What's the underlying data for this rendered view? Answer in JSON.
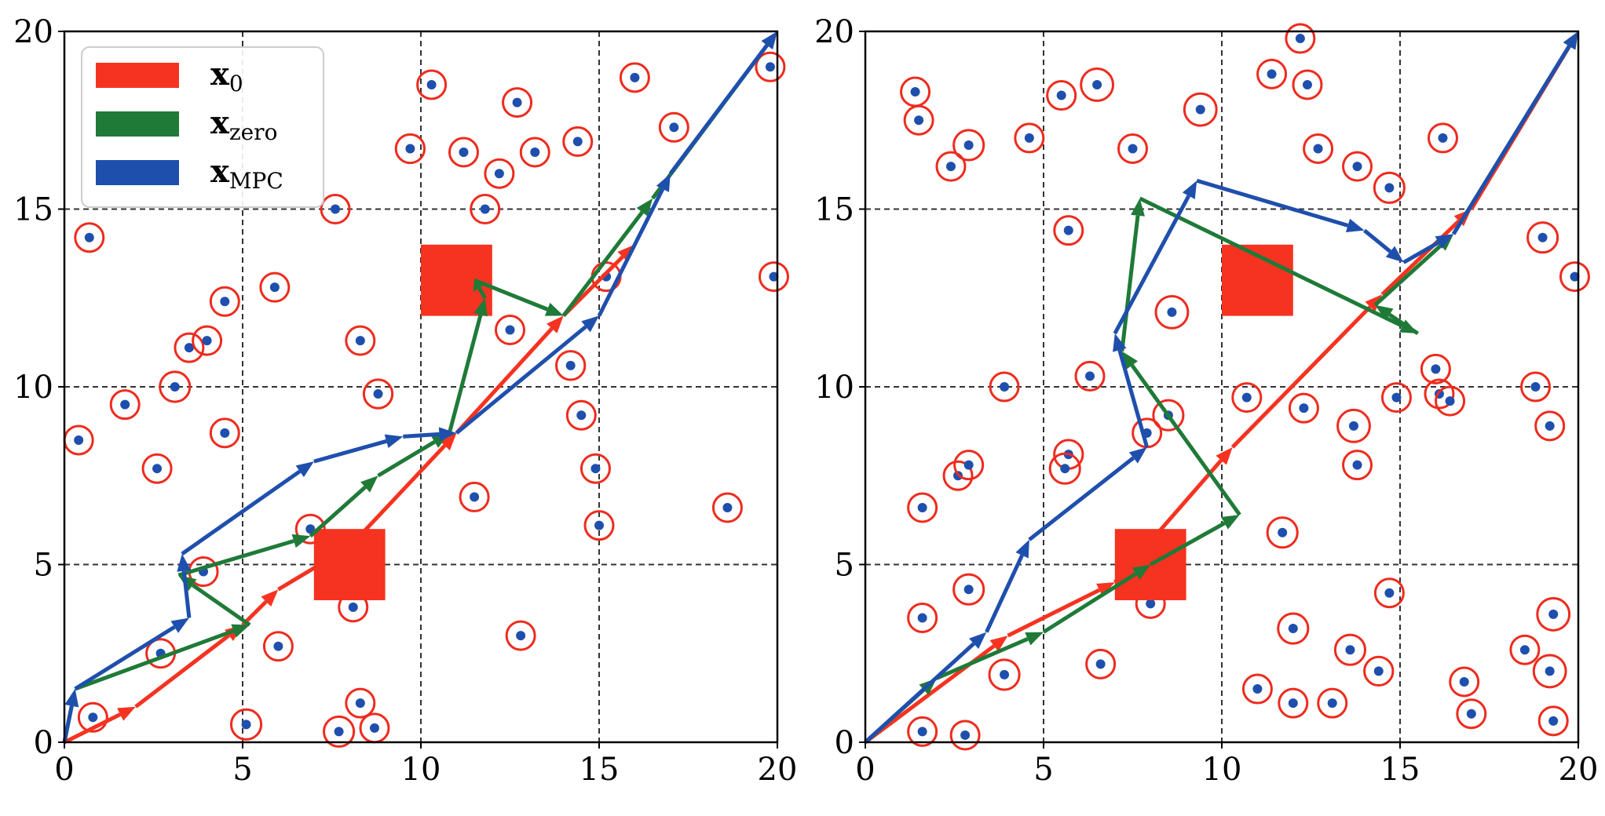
{
  "colors": {
    "x0": "#f53320",
    "xzero": "#1f7a38",
    "xmpc": "#1f4fad",
    "obstacle_ring": "#ee2b1e",
    "obstacle_dot": "#1f4fad",
    "grid": "#333333",
    "legend_frame": "#cccccc"
  },
  "chart_data": [
    {
      "type": "scatter",
      "subtype": "trajectory-plot",
      "xlim": [
        0,
        20
      ],
      "ylim": [
        0,
        20
      ],
      "xticks": [
        "0",
        "5",
        "10",
        "15",
        "20"
      ],
      "yticks": [
        "0",
        "5",
        "10",
        "15",
        "20"
      ],
      "grid": "dashed at 5, 10, 15",
      "legend": {
        "placement": "top-left",
        "entries": [
          {
            "key": "x0",
            "label": "x",
            "sub": "0"
          },
          {
            "key": "xzero",
            "label": "x",
            "sub": "zero"
          },
          {
            "key": "xmpc",
            "label": "x",
            "sub": "MPC"
          }
        ]
      },
      "squares": [
        {
          "x": 7,
          "y": 4,
          "w": 2,
          "h": 2
        },
        {
          "x": 10,
          "y": 12,
          "w": 2,
          "h": 2
        }
      ],
      "obstacles": [
        {
          "x": 0.7,
          "y": 14.2,
          "r": 0.3
        },
        {
          "x": 0.4,
          "y": 8.5,
          "r": 0.3
        },
        {
          "x": 1.7,
          "y": 9.5,
          "r": 0.25
        },
        {
          "x": 3.1,
          "y": 10.0,
          "r": 0.42
        },
        {
          "x": 3.5,
          "y": 11.1,
          "r": 0.35
        },
        {
          "x": 4.0,
          "y": 11.3,
          "r": 0.3
        },
        {
          "x": 4.5,
          "y": 12.4,
          "r": 0.25
        },
        {
          "x": 4.5,
          "y": 8.7,
          "r": 0.25
        },
        {
          "x": 2.6,
          "y": 7.7,
          "r": 0.35
        },
        {
          "x": 5.9,
          "y": 12.8,
          "r": 0.25
        },
        {
          "x": 8.3,
          "y": 11.3,
          "r": 0.3
        },
        {
          "x": 8.8,
          "y": 9.8,
          "r": 0.4
        },
        {
          "x": 7.6,
          "y": 15.0,
          "r": 0.35
        },
        {
          "x": 9.7,
          "y": 16.7,
          "r": 0.4
        },
        {
          "x": 10.3,
          "y": 18.5,
          "r": 0.25
        },
        {
          "x": 11.2,
          "y": 16.6,
          "r": 0.35
        },
        {
          "x": 11.8,
          "y": 15.0,
          "r": 0.25
        },
        {
          "x": 12.2,
          "y": 16.0,
          "r": 0.3
        },
        {
          "x": 12.7,
          "y": 18.0,
          "r": 0.35
        },
        {
          "x": 13.2,
          "y": 16.6,
          "r": 0.25
        },
        {
          "x": 14.4,
          "y": 16.9,
          "r": 0.35
        },
        {
          "x": 16.0,
          "y": 18.7,
          "r": 0.35
        },
        {
          "x": 17.1,
          "y": 17.3,
          "r": 0.35
        },
        {
          "x": 19.8,
          "y": 19.0,
          "r": 0.25
        },
        {
          "x": 19.9,
          "y": 13.1,
          "r": 0.3
        },
        {
          "x": 15.2,
          "y": 13.1,
          "r": 0.3
        },
        {
          "x": 12.5,
          "y": 11.6,
          "r": 0.32
        },
        {
          "x": 14.2,
          "y": 10.6,
          "r": 0.4
        },
        {
          "x": 14.5,
          "y": 9.2,
          "r": 0.25
        },
        {
          "x": 14.9,
          "y": 7.7,
          "r": 0.25
        },
        {
          "x": 11.5,
          "y": 6.9,
          "r": 0.35
        },
        {
          "x": 15.0,
          "y": 6.1,
          "r": 0.3
        },
        {
          "x": 18.6,
          "y": 6.6,
          "r": 0.35
        },
        {
          "x": 12.8,
          "y": 3.0,
          "r": 0.35
        },
        {
          "x": 6.9,
          "y": 6.0,
          "r": 0.35
        },
        {
          "x": 3.9,
          "y": 4.8,
          "r": 0.3
        },
        {
          "x": 2.7,
          "y": 2.5,
          "r": 0.35
        },
        {
          "x": 6.0,
          "y": 2.7,
          "r": 0.3
        },
        {
          "x": 8.1,
          "y": 3.8,
          "r": 0.3
        },
        {
          "x": 0.8,
          "y": 0.7,
          "r": 0.3
        },
        {
          "x": 5.1,
          "y": 0.5,
          "r": 0.42
        },
        {
          "x": 7.7,
          "y": 0.3,
          "r": 0.42
        },
        {
          "x": 8.3,
          "y": 1.1,
          "r": 0.3
        },
        {
          "x": 8.7,
          "y": 0.4,
          "r": 0.3
        }
      ],
      "series": [
        {
          "key": "x0",
          "points": [
            [
              0,
              0
            ],
            [
              2,
              1
            ],
            [
              5,
              3.3
            ],
            [
              6,
              4.3
            ],
            [
              8,
              5.5
            ],
            [
              11,
              8.7
            ],
            [
              14,
              12
            ],
            [
              16,
              14
            ]
          ]
        },
        {
          "key": "xzero",
          "points": [
            [
              0,
              0
            ],
            [
              0.3,
              1.5
            ],
            [
              5.2,
              3.3
            ],
            [
              3.2,
              4.7
            ],
            [
              6.9,
              5.8
            ],
            [
              8.8,
              7.5
            ],
            [
              10.8,
              8.7
            ],
            [
              11.8,
              12.5
            ],
            [
              11.5,
              13
            ],
            [
              14,
              12
            ],
            [
              16.5,
              15.3
            ],
            [
              20,
              20
            ]
          ]
        },
        {
          "key": "xmpc",
          "points": [
            [
              0,
              0
            ],
            [
              0.3,
              1.5
            ],
            [
              3.5,
              3.5
            ],
            [
              3.3,
              5.3
            ],
            [
              7,
              7.9
            ],
            [
              9.5,
              8.6
            ],
            [
              11,
              8.7
            ],
            [
              15,
              12
            ],
            [
              17,
              16
            ],
            [
              20,
              20
            ]
          ]
        }
      ]
    },
    {
      "type": "scatter",
      "subtype": "trajectory-plot",
      "xlim": [
        0,
        20
      ],
      "ylim": [
        0,
        20
      ],
      "xticks": [
        "0",
        "5",
        "10",
        "15",
        "20"
      ],
      "yticks": [
        "0",
        "5",
        "10",
        "15",
        "20"
      ],
      "grid": "dashed at 5, 10, 15",
      "squares": [
        {
          "x": 7,
          "y": 4,
          "w": 2,
          "h": 2
        },
        {
          "x": 10,
          "y": 12,
          "w": 2,
          "h": 2
        }
      ],
      "obstacles": [
        {
          "x": 1.4,
          "y": 18.3,
          "r": 0.35
        },
        {
          "x": 1.5,
          "y": 17.5,
          "r": 0.3
        },
        {
          "x": 2.4,
          "y": 16.2,
          "r": 0.3
        },
        {
          "x": 2.9,
          "y": 16.8,
          "r": 0.42
        },
        {
          "x": 4.6,
          "y": 17.0,
          "r": 0.3
        },
        {
          "x": 5.5,
          "y": 18.2,
          "r": 0.35
        },
        {
          "x": 6.5,
          "y": 18.5,
          "r": 0.45
        },
        {
          "x": 7.5,
          "y": 16.7,
          "r": 0.25
        },
        {
          "x": 9.4,
          "y": 17.8,
          "r": 0.45
        },
        {
          "x": 11.4,
          "y": 18.8,
          "r": 0.3
        },
        {
          "x": 12.2,
          "y": 19.8,
          "r": 0.3
        },
        {
          "x": 12.4,
          "y": 18.5,
          "r": 0.3
        },
        {
          "x": 12.7,
          "y": 16.7,
          "r": 0.35
        },
        {
          "x": 13.8,
          "y": 16.2,
          "r": 0.3
        },
        {
          "x": 14.7,
          "y": 15.6,
          "r": 0.42
        },
        {
          "x": 16.2,
          "y": 17.0,
          "r": 0.35
        },
        {
          "x": 19.0,
          "y": 14.2,
          "r": 0.42
        },
        {
          "x": 19.9,
          "y": 13.1,
          "r": 0.3
        },
        {
          "x": 5.7,
          "y": 14.4,
          "r": 0.3
        },
        {
          "x": 8.6,
          "y": 12.1,
          "r": 0.45
        },
        {
          "x": 3.9,
          "y": 10.0,
          "r": 0.35
        },
        {
          "x": 6.3,
          "y": 10.3,
          "r": 0.35
        },
        {
          "x": 7.9,
          "y": 8.7,
          "r": 0.3
        },
        {
          "x": 8.5,
          "y": 9.2,
          "r": 0.42
        },
        {
          "x": 10.7,
          "y": 9.7,
          "r": 0.35
        },
        {
          "x": 12.3,
          "y": 9.4,
          "r": 0.35
        },
        {
          "x": 13.7,
          "y": 8.9,
          "r": 0.45
        },
        {
          "x": 13.8,
          "y": 7.8,
          "r": 0.3
        },
        {
          "x": 14.9,
          "y": 9.7,
          "r": 0.35
        },
        {
          "x": 16.0,
          "y": 10.5,
          "r": 0.35
        },
        {
          "x": 16.1,
          "y": 9.8,
          "r": 0.35
        },
        {
          "x": 16.4,
          "y": 9.6,
          "r": 0.3
        },
        {
          "x": 18.8,
          "y": 10.0,
          "r": 0.35
        },
        {
          "x": 19.2,
          "y": 8.9,
          "r": 0.3
        },
        {
          "x": 2.6,
          "y": 7.5,
          "r": 0.3
        },
        {
          "x": 2.9,
          "y": 7.8,
          "r": 0.3
        },
        {
          "x": 5.7,
          "y": 8.1,
          "r": 0.4
        },
        {
          "x": 5.6,
          "y": 7.7,
          "r": 0.42
        },
        {
          "x": 1.6,
          "y": 6.6,
          "r": 0.3
        },
        {
          "x": 11.7,
          "y": 5.9,
          "r": 0.42
        },
        {
          "x": 2.9,
          "y": 4.3,
          "r": 0.42
        },
        {
          "x": 1.6,
          "y": 3.5,
          "r": 0.3
        },
        {
          "x": 8.0,
          "y": 3.9,
          "r": 0.25
        },
        {
          "x": 14.7,
          "y": 4.2,
          "r": 0.38
        },
        {
          "x": 19.3,
          "y": 3.6,
          "r": 0.45
        },
        {
          "x": 12.0,
          "y": 3.2,
          "r": 0.42
        },
        {
          "x": 13.6,
          "y": 2.6,
          "r": 0.42
        },
        {
          "x": 14.4,
          "y": 2.0,
          "r": 0.4
        },
        {
          "x": 18.5,
          "y": 2.6,
          "r": 0.35
        },
        {
          "x": 19.2,
          "y": 2.0,
          "r": 0.45
        },
        {
          "x": 3.9,
          "y": 1.9,
          "r": 0.42
        },
        {
          "x": 6.6,
          "y": 2.2,
          "r": 0.32
        },
        {
          "x": 16.8,
          "y": 1.7,
          "r": 0.35
        },
        {
          "x": 11.0,
          "y": 1.5,
          "r": 0.3
        },
        {
          "x": 12.0,
          "y": 1.1,
          "r": 0.3
        },
        {
          "x": 13.1,
          "y": 1.1,
          "r": 0.3
        },
        {
          "x": 17.0,
          "y": 0.8,
          "r": 0.3
        },
        {
          "x": 19.3,
          "y": 0.6,
          "r": 0.38
        },
        {
          "x": 1.6,
          "y": 0.3,
          "r": 0.35
        },
        {
          "x": 2.8,
          "y": 0.2,
          "r": 0.35
        }
      ],
      "series": [
        {
          "key": "x0",
          "points": [
            [
              0,
              0
            ],
            [
              4,
              3
            ],
            [
              7,
              4.5
            ],
            [
              10.3,
              8.3
            ],
            [
              14.5,
              12.6
            ],
            [
              17,
              15
            ],
            [
              20,
              20
            ]
          ]
        },
        {
          "key": "xzero",
          "points": [
            [
              0,
              0
            ],
            [
              2,
              1.8
            ],
            [
              5,
              3.1
            ],
            [
              8,
              5
            ],
            [
              10.5,
              6.4
            ],
            [
              7.2,
              11
            ],
            [
              7.7,
              15.3
            ],
            [
              15.5,
              11.5
            ],
            [
              14.3,
              12.3
            ],
            [
              16.5,
              14.3
            ],
            [
              20,
              20
            ]
          ]
        },
        {
          "key": "xmpc",
          "points": [
            [
              0,
              0
            ],
            [
              3.4,
              3.1
            ],
            [
              4.6,
              5.7
            ],
            [
              7.9,
              8.3
            ],
            [
              7,
              11.5
            ],
            [
              9.3,
              15.8
            ],
            [
              14,
              14.4
            ],
            [
              15.1,
              13.5
            ],
            [
              16.5,
              14.3
            ],
            [
              20,
              20
            ]
          ]
        }
      ]
    }
  ]
}
